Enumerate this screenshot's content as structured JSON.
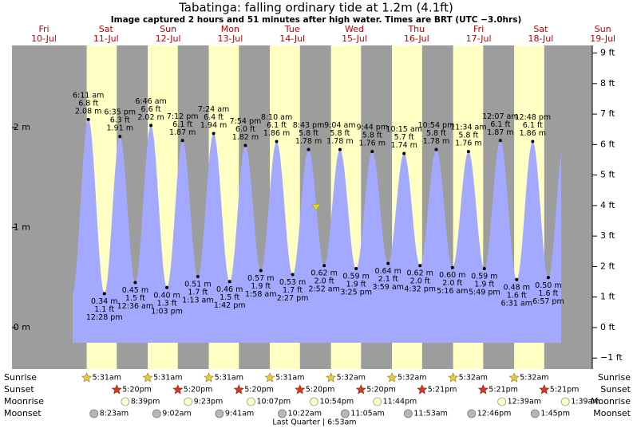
{
  "chart_data": {
    "type": "tide",
    "title": "Tabatinga: falling  ordinary tide at 1.2m (4.1ft)",
    "subtitle": "Image captured 2 hours and 51 minutes after high water. Times are BRT (UTC −3.0hrs)",
    "days": [
      "Fri",
      "Sat",
      "Sun",
      "Mon",
      "Tue",
      "Wed",
      "Thu",
      "Fri",
      "Sat",
      "Sun"
    ],
    "dates": [
      "10-Jul",
      "11-Jul",
      "12-Jul",
      "13-Jul",
      "14-Jul",
      "15-Jul",
      "16-Jul",
      "17-Jul",
      "18-Jul",
      "19-Jul"
    ],
    "color": "#a3a9ff",
    "day_color": "#ffffc4",
    "night_color": "#9d9d9d",
    "tides": {
      "times": [
        "6:11 am",
        "12:28 pm",
        "6:35 pm",
        "12:36 am",
        "6:46 am",
        "1:03 pm",
        "7:12 pm",
        "1:13 am",
        "7:24 am",
        "1:42 pm",
        "7:54 pm",
        "1:58 am",
        "8:10 am",
        "2:27 pm",
        "8:43 pm",
        "2:52 am",
        "9:04 am",
        "3:25 pm",
        "9:44 pm",
        "3:59 am",
        "10:15 am",
        "4:32 pm",
        "10:54 pm",
        "5:16 am",
        "11:34 am",
        "5:49 pm",
        "12:07 am",
        "6:31 am",
        "12:48 pm",
        "6:57 pm"
      ],
      "values": [
        2.08,
        0.34,
        1.91,
        0.45,
        2.02,
        0.4,
        1.87,
        0.51,
        1.94,
        0.46,
        1.82,
        0.57,
        1.86,
        0.53,
        1.78,
        0.62,
        1.78,
        0.59,
        1.76,
        0.64,
        1.74,
        0.62,
        1.78,
        0.6,
        1.76,
        0.59,
        1.87,
        0.48,
        1.86,
        0.5
      ],
      "value_labels": [
        "2.08 m",
        "0.34 m",
        "1.91 m",
        "0.45 m",
        "2.02 m",
        "0.40 m",
        "1.87 m",
        "0.51 m",
        "1.94 m",
        "0.46 m",
        "1.82 m",
        "0.57 m",
        "1.86 m",
        "0.53 m",
        "1.78 m",
        "0.62 m",
        "1.78 m",
        "0.59 m",
        "1.76 m",
        "0.64 m",
        "1.74 m",
        "0.62 m",
        "1.78 m",
        "0.60 m",
        "1.76 m",
        "0.59 m",
        "1.87 m",
        "0.48 m",
        "1.86 m",
        "0.50 m"
      ],
      "feet_labels": [
        "6.8 ft",
        "1.1 ft",
        "6.3 ft",
        "1.5 ft",
        "6.6 ft",
        "1.3 ft",
        "6.1 ft",
        "1.7 ft",
        "6.4 ft",
        "1.5 ft",
        "6.0 ft",
        "1.9 ft",
        "6.1 ft",
        "1.7 ft",
        "5.8 ft",
        "2.0 ft",
        "5.8 ft",
        "1.9 ft",
        "5.8 ft",
        "2.1 ft",
        "5.7 ft",
        "2.0 ft",
        "5.8 ft",
        "2.0 ft",
        "5.8 ft",
        "1.9 ft",
        "6.1 ft",
        "1.6 ft",
        "6.1 ft",
        "1.6 ft"
      ]
    },
    "current_level": 1.2,
    "ylim": [
      -0.414,
      2.82
    ],
    "yticks": [
      {
        "value": 0,
        "label": "0 m"
      },
      {
        "value": 1,
        "label": "1 m"
      },
      {
        "value": 2,
        "label": "2 m"
      }
    ],
    "y2lim": [
      -1.36,
      9.25
    ],
    "y2ticks": [
      {
        "value": -1,
        "label": "−1 ft"
      },
      {
        "value": 0,
        "label": "0 ft"
      },
      {
        "value": 1,
        "label": "1 ft"
      },
      {
        "value": 2,
        "label": "2 ft"
      },
      {
        "value": 3,
        "label": "3 ft"
      },
      {
        "value": 4,
        "label": "4 ft"
      },
      {
        "value": 5,
        "label": "5 ft"
      },
      {
        "value": 6,
        "label": "6 ft"
      },
      {
        "value": 7,
        "label": "7 ft"
      },
      {
        "value": 8,
        "label": "8 ft"
      },
      {
        "value": 9,
        "label": "9 ft"
      }
    ],
    "rows": [
      {
        "name": "Sunrise",
        "times": [
          "5:31am",
          "5:31am",
          "5:31am",
          "5:31am",
          "5:32am",
          "5:32am",
          "5:32am",
          "5:32am"
        ]
      },
      {
        "name": "Sunset",
        "times": [
          "5:20pm",
          "5:20pm",
          "5:20pm",
          "5:20pm",
          "5:20pm",
          "5:21pm",
          "5:21pm",
          "5:21pm"
        ]
      },
      {
        "name": "Moonrise",
        "times": [
          "8:39pm",
          "9:23pm",
          "10:07pm",
          "10:54pm",
          "11:44pm",
          null,
          "12:39am",
          "1:39am"
        ]
      },
      {
        "name": "Moonset",
        "times": [
          "8:23am",
          "9:02am",
          "9:41am",
          "10:22am",
          "11:05am",
          "11:53am",
          "12:46pm",
          "1:45pm"
        ]
      }
    ],
    "moon_phase": "Last Quarter | 6:53am"
  }
}
